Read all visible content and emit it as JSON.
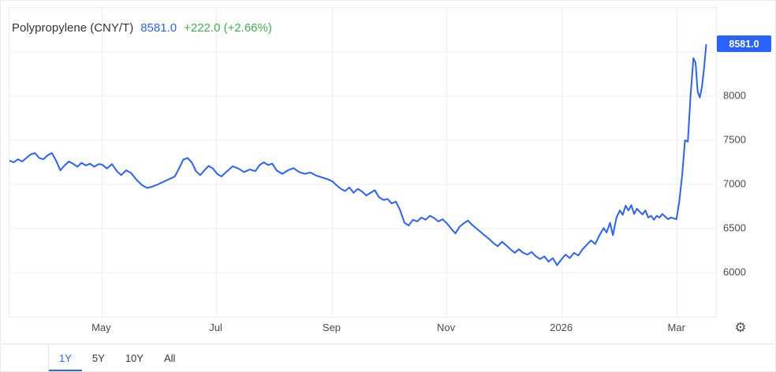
{
  "header": {
    "title": "Polypropylene (CNY/T)",
    "price": "8581.0",
    "change": "+222.0 (+2.66%)"
  },
  "badge": {
    "label": "8581.0"
  },
  "colors": {
    "line": "#2962ff",
    "price_text": "#2962ff",
    "change_text": "#3fae4e",
    "grid": "#ececec",
    "axis_text": "#4a4a4a",
    "badge_bg": "#2962ff",
    "active_tab": "#2962ff"
  },
  "toolbar": {
    "tabs": [
      {
        "label": "1Y",
        "active": true
      },
      {
        "label": "5Y",
        "active": false
      },
      {
        "label": "10Y",
        "active": false
      },
      {
        "label": "All",
        "active": false
      }
    ],
    "gear_icon": "⚙"
  },
  "chart_data": {
    "type": "line",
    "title": "Polypropylene (CNY/T)",
    "unit": "CNY/T",
    "current": 8581.0,
    "change": 222.0,
    "change_pct": 2.66,
    "ylim": [
      5500,
      9000
    ],
    "y_ticks": [
      8000,
      7500,
      7000,
      6500,
      6000
    ],
    "grid_values": [
      8500,
      8000,
      7500,
      7000,
      6500,
      6000
    ],
    "x_ticks": [
      {
        "label": "May",
        "f": 0.131
      },
      {
        "label": "Jul",
        "f": 0.293
      },
      {
        "label": "Sep",
        "f": 0.457
      },
      {
        "label": "Nov",
        "f": 0.619
      },
      {
        "label": "2026",
        "f": 0.782
      },
      {
        "label": "Mar",
        "f": 0.945
      }
    ],
    "legend": "none",
    "grid": "on",
    "points": [
      [
        0.0,
        7270
      ],
      [
        0.006,
        7250
      ],
      [
        0.012,
        7285
      ],
      [
        0.018,
        7260
      ],
      [
        0.024,
        7300
      ],
      [
        0.03,
        7340
      ],
      [
        0.036,
        7355
      ],
      [
        0.042,
        7300
      ],
      [
        0.048,
        7285
      ],
      [
        0.054,
        7330
      ],
      [
        0.06,
        7355
      ],
      [
        0.066,
        7270
      ],
      [
        0.072,
        7160
      ],
      [
        0.078,
        7215
      ],
      [
        0.084,
        7260
      ],
      [
        0.09,
        7235
      ],
      [
        0.096,
        7200
      ],
      [
        0.102,
        7245
      ],
      [
        0.108,
        7215
      ],
      [
        0.114,
        7235
      ],
      [
        0.12,
        7200
      ],
      [
        0.126,
        7230
      ],
      [
        0.131,
        7225
      ],
      [
        0.138,
        7180
      ],
      [
        0.145,
        7230
      ],
      [
        0.152,
        7150
      ],
      [
        0.158,
        7105
      ],
      [
        0.165,
        7160
      ],
      [
        0.172,
        7130
      ],
      [
        0.18,
        7050
      ],
      [
        0.188,
        6990
      ],
      [
        0.195,
        6960
      ],
      [
        0.202,
        6975
      ],
      [
        0.21,
        7000
      ],
      [
        0.218,
        7030
      ],
      [
        0.226,
        7060
      ],
      [
        0.234,
        7090
      ],
      [
        0.24,
        7180
      ],
      [
        0.246,
        7280
      ],
      [
        0.252,
        7300
      ],
      [
        0.258,
        7250
      ],
      [
        0.264,
        7150
      ],
      [
        0.27,
        7105
      ],
      [
        0.276,
        7160
      ],
      [
        0.282,
        7210
      ],
      [
        0.288,
        7180
      ],
      [
        0.294,
        7120
      ],
      [
        0.3,
        7090
      ],
      [
        0.308,
        7150
      ],
      [
        0.316,
        7205
      ],
      [
        0.324,
        7180
      ],
      [
        0.332,
        7140
      ],
      [
        0.34,
        7170
      ],
      [
        0.348,
        7150
      ],
      [
        0.354,
        7220
      ],
      [
        0.36,
        7250
      ],
      [
        0.366,
        7220
      ],
      [
        0.372,
        7235
      ],
      [
        0.378,
        7160
      ],
      [
        0.386,
        7120
      ],
      [
        0.394,
        7160
      ],
      [
        0.402,
        7185
      ],
      [
        0.41,
        7140
      ],
      [
        0.418,
        7120
      ],
      [
        0.426,
        7135
      ],
      [
        0.434,
        7100
      ],
      [
        0.442,
        7080
      ],
      [
        0.45,
        7060
      ],
      [
        0.457,
        7035
      ],
      [
        0.463,
        6990
      ],
      [
        0.469,
        6950
      ],
      [
        0.475,
        6925
      ],
      [
        0.481,
        6965
      ],
      [
        0.487,
        6905
      ],
      [
        0.493,
        6950
      ],
      [
        0.499,
        6920
      ],
      [
        0.505,
        6875
      ],
      [
        0.511,
        6905
      ],
      [
        0.517,
        6935
      ],
      [
        0.523,
        6855
      ],
      [
        0.529,
        6825
      ],
      [
        0.535,
        6835
      ],
      [
        0.541,
        6785
      ],
      [
        0.547,
        6805
      ],
      [
        0.553,
        6705
      ],
      [
        0.559,
        6565
      ],
      [
        0.565,
        6535
      ],
      [
        0.571,
        6600
      ],
      [
        0.577,
        6580
      ],
      [
        0.583,
        6625
      ],
      [
        0.589,
        6600
      ],
      [
        0.595,
        6645
      ],
      [
        0.601,
        6620
      ],
      [
        0.607,
        6580
      ],
      [
        0.613,
        6605
      ],
      [
        0.619,
        6560
      ],
      [
        0.625,
        6500
      ],
      [
        0.631,
        6445
      ],
      [
        0.637,
        6520
      ],
      [
        0.643,
        6560
      ],
      [
        0.649,
        6590
      ],
      [
        0.655,
        6540
      ],
      [
        0.661,
        6500
      ],
      [
        0.667,
        6460
      ],
      [
        0.673,
        6420
      ],
      [
        0.679,
        6380
      ],
      [
        0.685,
        6335
      ],
      [
        0.691,
        6300
      ],
      [
        0.697,
        6350
      ],
      [
        0.703,
        6310
      ],
      [
        0.709,
        6265
      ],
      [
        0.715,
        6225
      ],
      [
        0.721,
        6265
      ],
      [
        0.727,
        6225
      ],
      [
        0.733,
        6205
      ],
      [
        0.739,
        6235
      ],
      [
        0.745,
        6185
      ],
      [
        0.751,
        6155
      ],
      [
        0.757,
        6185
      ],
      [
        0.763,
        6125
      ],
      [
        0.769,
        6165
      ],
      [
        0.775,
        6085
      ],
      [
        0.781,
        6150
      ],
      [
        0.787,
        6205
      ],
      [
        0.793,
        6165
      ],
      [
        0.799,
        6225
      ],
      [
        0.805,
        6195
      ],
      [
        0.811,
        6265
      ],
      [
        0.817,
        6315
      ],
      [
        0.823,
        6365
      ],
      [
        0.829,
        6325
      ],
      [
        0.835,
        6425
      ],
      [
        0.841,
        6505
      ],
      [
        0.845,
        6455
      ],
      [
        0.85,
        6565
      ],
      [
        0.854,
        6425
      ],
      [
        0.859,
        6625
      ],
      [
        0.864,
        6705
      ],
      [
        0.868,
        6655
      ],
      [
        0.872,
        6760
      ],
      [
        0.876,
        6705
      ],
      [
        0.88,
        6765
      ],
      [
        0.884,
        6665
      ],
      [
        0.888,
        6725
      ],
      [
        0.892,
        6690
      ],
      [
        0.896,
        6660
      ],
      [
        0.9,
        6705
      ],
      [
        0.904,
        6625
      ],
      [
        0.908,
        6645
      ],
      [
        0.912,
        6600
      ],
      [
        0.916,
        6645
      ],
      [
        0.92,
        6625
      ],
      [
        0.924,
        6665
      ],
      [
        0.928,
        6635
      ],
      [
        0.932,
        6605
      ],
      [
        0.936,
        6625
      ],
      [
        0.94,
        6615
      ],
      [
        0.944,
        6605
      ],
      [
        0.948,
        6810
      ],
      [
        0.952,
        7105
      ],
      [
        0.956,
        7500
      ],
      [
        0.96,
        7485
      ],
      [
        0.964,
        8010
      ],
      [
        0.968,
        8430
      ],
      [
        0.971,
        8380
      ],
      [
        0.974,
        8050
      ],
      [
        0.977,
        7985
      ],
      [
        0.98,
        8105
      ],
      [
        0.983,
        8320
      ],
      [
        0.986,
        8581
      ]
    ]
  }
}
